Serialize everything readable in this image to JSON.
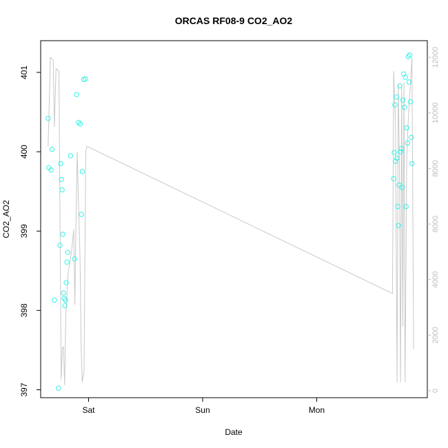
{
  "chart_data": {
    "type": "scatter",
    "title": "ORCAS RF08-9 CO2_AO2",
    "xlabel": "Date",
    "ylabel": "CO2_AO2",
    "x_ticks": [
      "Sat",
      "Sun",
      "Mon"
    ],
    "y_ticks": [
      "397",
      "398",
      "399",
      "400",
      "401"
    ],
    "ylim": [
      396.9,
      401.4
    ],
    "y2_ticks": [
      "0",
      "2000",
      "4000",
      "6000",
      "8000",
      "10000",
      "12000"
    ],
    "y2lim": [
      -250,
      12600
    ],
    "xlim": [
      0.58,
      3.97
    ],
    "colors": {
      "points": "#33f2e6",
      "line": "#c8c8c8",
      "axis": "#000000",
      "right_axis": "#bdbdbd"
    },
    "series": [
      {
        "kind": "points",
        "axis": "left",
        "x": [
          0.645,
          0.652,
          0.672,
          0.68,
          0.701,
          0.736,
          0.749,
          0.755,
          0.762,
          0.768,
          0.774,
          0.78,
          0.786,
          0.792,
          0.798,
          0.804,
          0.811,
          0.817,
          0.842,
          0.876,
          0.895,
          0.912,
          0.927,
          0.937,
          0.945,
          0.958,
          0.972,
          3.675,
          3.68,
          3.686,
          3.691,
          3.699,
          3.705,
          3.711,
          3.716,
          3.722,
          3.728,
          3.735,
          3.742,
          3.749,
          3.756,
          3.763,
          3.77,
          3.777,
          3.784,
          3.79,
          3.797,
          3.803,
          3.81,
          3.816,
          3.822,
          3.829,
          3.836
        ],
        "y": [
          400.42,
          399.8,
          399.77,
          400.03,
          398.13,
          397.02,
          398.82,
          399.85,
          399.65,
          399.52,
          398.96,
          398.22,
          398.15,
          398.06,
          398.13,
          398.35,
          398.61,
          398.73,
          399.95,
          398.65,
          400.72,
          400.37,
          400.35,
          399.21,
          399.75,
          400.91,
          400.92,
          399.66,
          399.99,
          400.59,
          399.88,
          400.69,
          399.92,
          399.31,
          399.07,
          399.58,
          400.83,
          400.0,
          400.04,
          399.55,
          400.65,
          400.98,
          400.56,
          400.94,
          399.31,
          400.3,
          400.11,
          401.2,
          400.88,
          401.22,
          400.63,
          400.18,
          399.85
        ]
      },
      {
        "kind": "line",
        "axis": "right",
        "x": [
          0.645,
          0.665,
          0.69,
          0.7,
          0.715,
          0.74,
          0.76,
          0.77,
          0.78,
          0.79,
          0.8,
          0.82,
          0.85,
          0.87,
          0.88,
          0.89,
          0.9,
          0.915,
          0.925,
          0.935,
          0.945,
          0.96,
          0.975,
          0.985,
          3.665,
          3.675,
          3.69,
          3.705,
          3.715,
          3.725,
          3.735,
          3.745,
          3.755,
          3.765,
          3.775,
          3.79,
          3.805,
          3.82,
          3.835,
          3.85
        ],
        "y": [
          8800,
          12000,
          11900,
          9500,
          11600,
          11500,
          400,
          1500,
          1600,
          200,
          2700,
          4200,
          5000,
          5800,
          3100,
          6100,
          8600,
          6300,
          4800,
          1600,
          300,
          700,
          8600,
          8800,
          3500,
          11500,
          9700,
          300,
          11000,
          8300,
          300,
          11000,
          2300,
          11100,
          300,
          8500,
          9900,
          10900,
          12000,
          1500
        ]
      }
    ]
  }
}
